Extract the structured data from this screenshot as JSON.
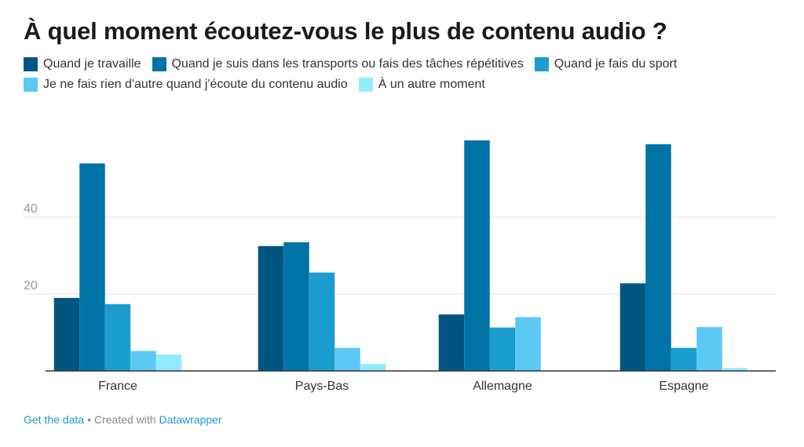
{
  "chart_data": {
    "type": "bar",
    "title": "À quel moment écoutez-vous le plus de contenu audio ?",
    "categories": [
      "France",
      "Pays-Bas",
      "Allemagne",
      "Espagne"
    ],
    "series": [
      {
        "name": "Quand je travaille",
        "color": "#005681",
        "values": [
          19,
          32.5,
          14.7,
          22.8
        ]
      },
      {
        "name": "Quand je suis dans les transports ou fais des tâches répétitives",
        "color": "#0073a6",
        "values": [
          54,
          33.5,
          60,
          59
        ]
      },
      {
        "name": "Quand je fais du sport",
        "color": "#1b9ecf",
        "values": [
          17.4,
          25.6,
          11.3,
          6
        ]
      },
      {
        "name": "Je ne fais rien d'autre quand j'écoute du contenu audio",
        "color": "#5bc9f3",
        "values": [
          5.2,
          6,
          14,
          11.4
        ]
      },
      {
        "name": "À un autre moment",
        "color": "#93ecfd",
        "values": [
          4.3,
          1.8,
          0,
          0.8
        ]
      }
    ],
    "yticks": [
      20,
      40
    ],
    "ylim": [
      0,
      62
    ],
    "grid": true,
    "legend": "top-left"
  },
  "footer": {
    "get_data": "Get the data",
    "sep": "•",
    "created": "Created with",
    "tool": "Datawrapper"
  }
}
